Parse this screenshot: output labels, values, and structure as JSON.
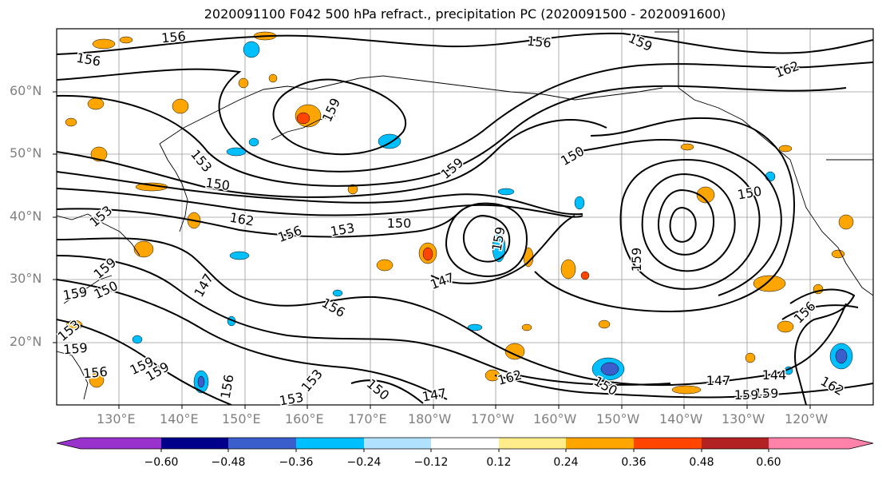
{
  "title": "2020091100 F042 500 hPa refract., precipitation PC (2020091500 - 2020091600)",
  "lat_labels": [
    "60°N",
    "50°N",
    "40°N",
    "30°N",
    "20°N"
  ],
  "lon_labels": [
    "130°E",
    "140°E",
    "150°E",
    "160°E",
    "170°E",
    "180°W",
    "170°W",
    "160°W",
    "150°W",
    "140°W",
    "130°W",
    "120°W"
  ],
  "contour_labels": [
    "156",
    "156",
    "156",
    "159",
    "162",
    "159",
    "153",
    "150",
    "150",
    "159",
    "150",
    "162",
    "156",
    "153",
    "150",
    "153",
    "159",
    "147",
    "147",
    "159",
    "150",
    "159",
    "156",
    "153",
    "159",
    "156",
    "159",
    "153",
    "150",
    "147",
    "162",
    "150",
    "159",
    "147",
    "144",
    "159",
    "162",
    "156",
    "159",
    "156",
    "153",
    "159"
  ],
  "colorbar": {
    "ticks": [
      "−0.60",
      "−0.48",
      "−0.36",
      "−0.24",
      "−0.12",
      "0.12",
      "0.24",
      "0.36",
      "0.48",
      "0.60"
    ],
    "colors": [
      "#9932CC",
      "#00008B",
      "#3A5FCD",
      "#00BFFF",
      "#B0E2FF",
      "#FFFFFF",
      "#FFEC8B",
      "#FFA500",
      "#FF4500",
      "#B22222",
      "#FF82AB"
    ]
  }
}
